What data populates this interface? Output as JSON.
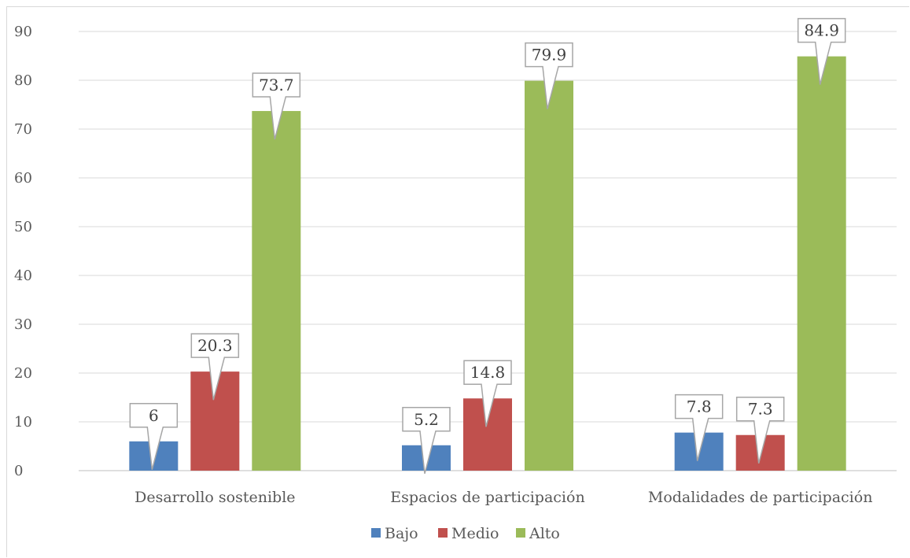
{
  "chart_data": {
    "type": "bar",
    "categories": [
      "Desarrollo sostenible",
      "Espacios de participación",
      "Modalidades de participación"
    ],
    "series": [
      {
        "name": "Bajo",
        "values": [
          6,
          5.2,
          7.8
        ],
        "color": "#4f81bd"
      },
      {
        "name": "Medio",
        "values": [
          20.3,
          14.8,
          7.3
        ],
        "color": "#c0504d"
      },
      {
        "name": "Alto",
        "values": [
          73.7,
          79.9,
          84.9
        ],
        "color": "#9bbb59"
      }
    ],
    "data_labels": [
      [
        "6",
        "5.2",
        "7.8"
      ],
      [
        "20.3",
        "14.8",
        "7.3"
      ],
      [
        "73.7",
        "79.9",
        "84.9"
      ]
    ],
    "ylim": [
      0,
      90
    ],
    "yticks": [
      "0",
      "10",
      "20",
      "30",
      "40",
      "50",
      "60",
      "70",
      "80",
      "90"
    ],
    "grid": true,
    "legend_position": "bottom",
    "title": "",
    "xlabel": "",
    "ylabel": ""
  }
}
